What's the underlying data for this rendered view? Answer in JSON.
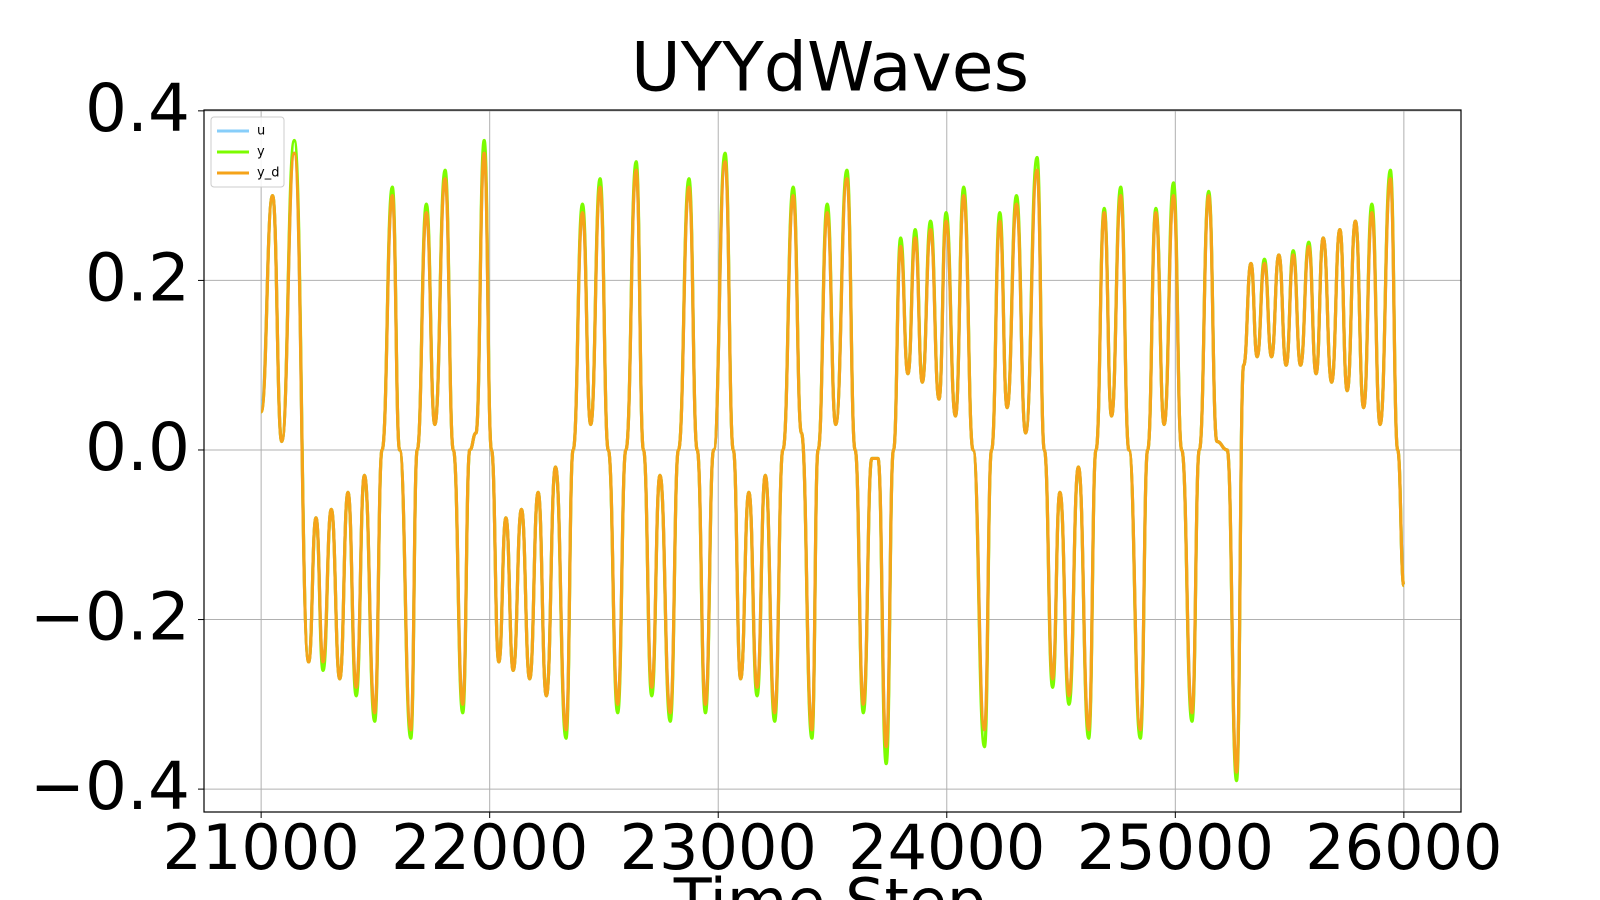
{
  "chart_data": {
    "type": "line",
    "title": "UYYdWaves",
    "xlabel": "Time Step",
    "xlim": [
      20750,
      26250
    ],
    "ylim": [
      -0.427,
      0.401
    ],
    "xticks": [
      21000,
      22000,
      23000,
      24000,
      25000,
      26000
    ],
    "yticks": [
      {
        "value": -0.4,
        "label": "−0.4"
      },
      {
        "value": -0.2,
        "label": "−0.2"
      },
      {
        "value": 0,
        "label": "0.0"
      },
      0.2,
      0.4
    ],
    "grid": true,
    "legend": "upper left",
    "x": [
      21000,
      21050,
      21090,
      21145,
      21208,
      21240,
      21271,
      21307,
      21344,
      21380,
      21416,
      21452,
      21497,
      21529,
      21574,
      21606,
      21655,
      21683,
      21723,
      21760,
      21805,
      21841,
      21882,
      21913,
      21940,
      21976,
      22008,
      22040,
      22071,
      22103,
      22139,
      22175,
      22212,
      22248,
      22288,
      22334,
      22365,
      22406,
      22442,
      22483,
      22519,
      22560,
      22596,
      22641,
      22673,
      22709,
      22745,
      22790,
      22826,
      22872,
      22908,
      22944,
      22980,
      23030,
      23066,
      23098,
      23134,
      23170,
      23206,
      23247,
      23283,
      23328,
      23364,
      23410,
      23437,
      23477,
      23514,
      23563,
      23599,
      23635,
      23672,
      23699,
      23735,
      23767,
      23798,
      23830,
      23862,
      23893,
      23929,
      23966,
      23997,
      24038,
      24074,
      24115,
      24165,
      24196,
      24232,
      24264,
      24305,
      24345,
      24395,
      24427,
      24463,
      24495,
      24535,
      24576,
      24621,
      24653,
      24689,
      24721,
      24761,
      24797,
      24847,
      24879,
      24915,
      24951,
      24992,
      25028,
      25073,
      25105,
      25146,
      25182,
      25227,
      25268,
      25299,
      25331,
      25358,
      25390,
      25421,
      25453,
      25485,
      25516,
      25548,
      25584,
      25616,
      25647,
      25684,
      25720,
      25752,
      25788,
      25824,
      25860,
      25896,
      25941,
      25973,
      26000
    ],
    "series": [
      {
        "name": "u",
        "color": "#87cefa",
        "values": [
          0.055,
          0.3,
          0.01,
          0.35,
          -0.25,
          -0.08,
          -0.25,
          -0.07,
          -0.27,
          -0.05,
          -0.28,
          -0.03,
          -0.31,
          0.0,
          0.3,
          0.0,
          -0.33,
          0.0,
          0.28,
          0.03,
          0.32,
          0.0,
          -0.3,
          0.0,
          0.02,
          0.35,
          0.0,
          -0.25,
          -0.08,
          -0.26,
          -0.07,
          -0.27,
          -0.05,
          -0.29,
          -0.02,
          -0.33,
          0.0,
          0.28,
          0.03,
          0.31,
          0.0,
          -0.3,
          0.0,
          0.33,
          0.0,
          -0.28,
          -0.03,
          -0.31,
          0.0,
          0.31,
          0.0,
          -0.3,
          0.0,
          0.34,
          0.0,
          -0.27,
          -0.05,
          -0.28,
          -0.03,
          -0.31,
          0.0,
          0.3,
          0.02,
          -0.33,
          0.0,
          0.28,
          0.03,
          0.32,
          0.0,
          -0.3,
          -0.01,
          -0.01,
          -0.35,
          0.0,
          0.24,
          0.09,
          0.25,
          0.08,
          0.26,
          0.06,
          0.27,
          0.04,
          0.3,
          0.0,
          -0.33,
          0.0,
          0.27,
          0.05,
          0.29,
          0.02,
          0.33,
          0.0,
          -0.27,
          -0.05,
          -0.29,
          -0.02,
          -0.33,
          0.0,
          0.28,
          0.04,
          0.3,
          0.0,
          -0.33,
          0.0,
          0.28,
          0.03,
          0.3,
          0.0,
          -0.31,
          0.0,
          0.3,
          0.01,
          0.0,
          -0.38,
          0.1,
          0.22,
          0.11,
          0.22,
          0.11,
          0.23,
          0.1,
          0.23,
          0.1,
          0.24,
          0.09,
          0.25,
          0.08,
          0.26,
          0.07,
          0.27,
          0.05,
          0.28,
          0.03,
          0.32,
          0.0,
          -0.16
        ]
      },
      {
        "name": "y",
        "color": "#7cfc00",
        "values": [
          0.045,
          0.3,
          0.01,
          0.365,
          -0.25,
          -0.08,
          -0.26,
          -0.07,
          -0.27,
          -0.05,
          -0.29,
          -0.03,
          -0.32,
          0.0,
          0.31,
          0.0,
          -0.34,
          0.0,
          0.29,
          0.03,
          0.33,
          0.0,
          -0.31,
          0.0,
          0.02,
          0.365,
          0.0,
          -0.25,
          -0.08,
          -0.26,
          -0.07,
          -0.27,
          -0.05,
          -0.29,
          -0.02,
          -0.34,
          0.0,
          0.29,
          0.03,
          0.32,
          0.0,
          -0.31,
          0.0,
          0.34,
          0.0,
          -0.29,
          -0.03,
          -0.32,
          0.0,
          0.32,
          0.0,
          -0.31,
          0.0,
          0.35,
          0.0,
          -0.27,
          -0.05,
          -0.29,
          -0.03,
          -0.32,
          0.0,
          0.31,
          0.02,
          -0.34,
          0.0,
          0.29,
          0.03,
          0.33,
          0.0,
          -0.31,
          -0.01,
          -0.01,
          -0.37,
          0.0,
          0.25,
          0.09,
          0.26,
          0.08,
          0.27,
          0.06,
          0.28,
          0.04,
          0.31,
          0.0,
          -0.35,
          0.0,
          0.28,
          0.05,
          0.3,
          0.02,
          0.345,
          0.0,
          -0.28,
          -0.05,
          -0.3,
          -0.02,
          -0.34,
          0.0,
          0.285,
          0.04,
          0.31,
          0.0,
          -0.34,
          0.0,
          0.285,
          0.03,
          0.315,
          0.0,
          -0.32,
          0.0,
          0.305,
          0.01,
          0.0,
          -0.39,
          0.1,
          0.22,
          0.11,
          0.225,
          0.11,
          0.23,
          0.1,
          0.235,
          0.1,
          0.245,
          0.09,
          0.25,
          0.08,
          0.26,
          0.07,
          0.27,
          0.05,
          0.29,
          0.03,
          0.33,
          0.0,
          -0.16
        ]
      },
      {
        "name": "y_d",
        "color": "#f5a31a",
        "values": [
          0.045,
          0.3,
          0.01,
          0.35,
          -0.25,
          -0.08,
          -0.25,
          -0.07,
          -0.27,
          -0.05,
          -0.28,
          -0.03,
          -0.31,
          0.0,
          0.3,
          0.0,
          -0.33,
          0.0,
          0.28,
          0.03,
          0.32,
          0.0,
          -0.3,
          0.0,
          0.02,
          0.35,
          0.0,
          -0.25,
          -0.08,
          -0.26,
          -0.07,
          -0.27,
          -0.05,
          -0.29,
          -0.02,
          -0.33,
          0.0,
          0.28,
          0.03,
          0.31,
          0.0,
          -0.3,
          0.0,
          0.33,
          0.0,
          -0.28,
          -0.03,
          -0.31,
          0.0,
          0.31,
          0.0,
          -0.3,
          0.0,
          0.34,
          0.0,
          -0.27,
          -0.05,
          -0.28,
          -0.03,
          -0.31,
          0.0,
          0.3,
          0.02,
          -0.33,
          0.0,
          0.28,
          0.03,
          0.32,
          0.0,
          -0.3,
          -0.01,
          -0.01,
          -0.35,
          0.0,
          0.24,
          0.09,
          0.25,
          0.08,
          0.26,
          0.06,
          0.27,
          0.04,
          0.3,
          0.0,
          -0.33,
          0.0,
          0.27,
          0.05,
          0.29,
          0.02,
          0.33,
          0.0,
          -0.27,
          -0.05,
          -0.29,
          -0.02,
          -0.33,
          0.0,
          0.28,
          0.04,
          0.3,
          0.0,
          -0.33,
          0.0,
          0.28,
          0.03,
          0.3,
          0.0,
          -0.31,
          0.0,
          0.3,
          0.01,
          0.0,
          -0.38,
          0.1,
          0.22,
          0.11,
          0.22,
          0.11,
          0.23,
          0.1,
          0.23,
          0.1,
          0.24,
          0.09,
          0.25,
          0.08,
          0.26,
          0.07,
          0.27,
          0.05,
          0.28,
          0.03,
          0.32,
          0.0,
          -0.16
        ]
      }
    ]
  }
}
